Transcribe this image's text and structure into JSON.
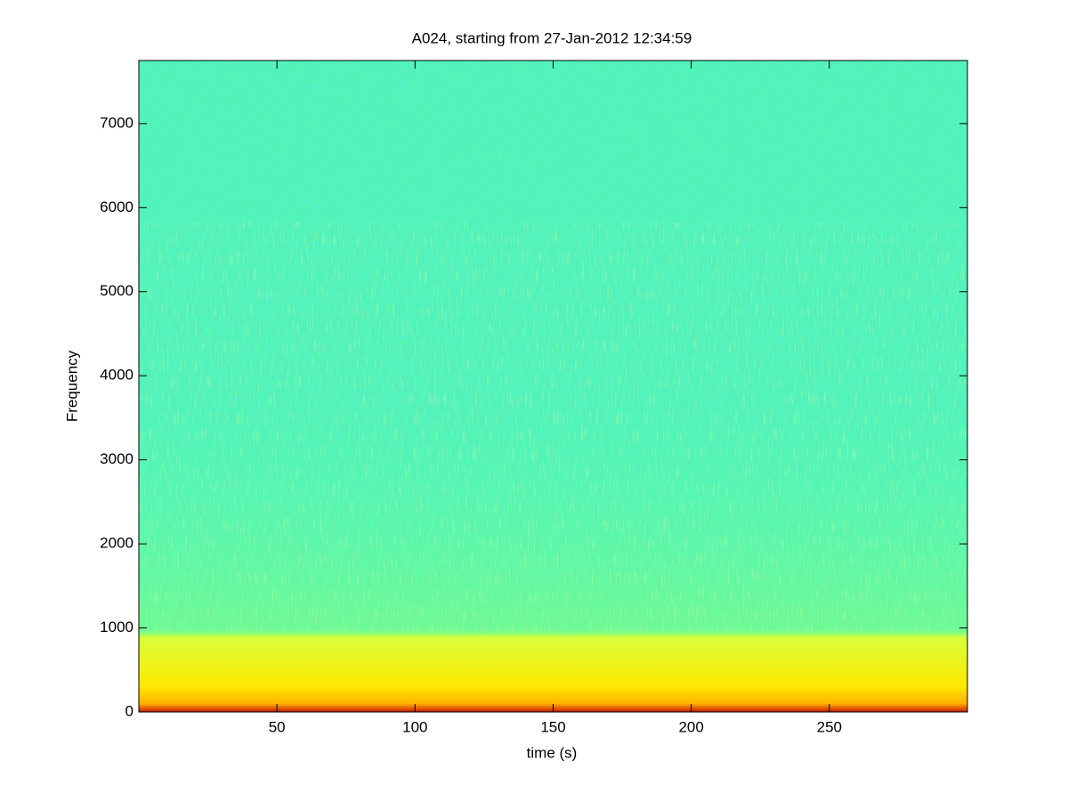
{
  "chart_data": {
    "type": "spectrogram",
    "title": "A024, starting from 27-Jan-2012 12:34:59",
    "x_label": "time (s)",
    "y_label": "Frequency",
    "xlim": [
      0,
      300
    ],
    "xticks": [
      50,
      100,
      150,
      200,
      250
    ],
    "ylim": [
      0,
      7750
    ],
    "yticks": [
      0,
      1000,
      2000,
      3000,
      4000,
      5000,
      6000,
      7000
    ]
  }
}
